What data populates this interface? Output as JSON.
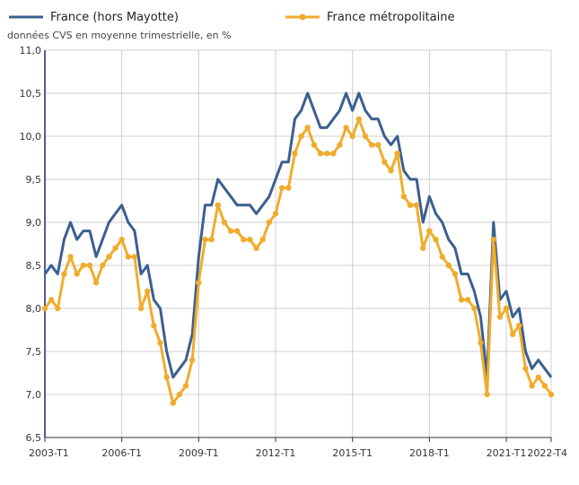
{
  "chart_data": {
    "type": "line",
    "subtitle": "données CVS en moyenne trimestrielle, en %",
    "legend_position": "top",
    "grid": true,
    "ylim": [
      6.5,
      11.0
    ],
    "y_ticks": [
      "6,5",
      "7,0",
      "7,5",
      "8,0",
      "8,5",
      "9,0",
      "9,5",
      "10,0",
      "10,5",
      "11,0"
    ],
    "x_ticks": [
      "2003-T1",
      "2006-T1",
      "2009-T1",
      "2012-T1",
      "2015-T1",
      "2018-T1",
      "2021-T1",
      "2022-T4"
    ],
    "x_tick_positions": [
      0,
      12,
      24,
      36,
      48,
      60,
      72,
      79
    ],
    "x_first": "2003-T1",
    "x_last": "2022-T4",
    "series": [
      {
        "name": "France (hors Mayotte)",
        "color": "#3b5f8f",
        "markers": false,
        "values": [
          8.4,
          8.5,
          8.4,
          8.8,
          9.0,
          8.8,
          8.9,
          8.9,
          8.6,
          8.8,
          9.0,
          9.1,
          9.2,
          9.0,
          8.9,
          8.4,
          8.5,
          8.1,
          8.0,
          7.5,
          7.2,
          7.3,
          7.4,
          7.7,
          8.6,
          9.2,
          9.2,
          9.5,
          9.4,
          9.3,
          9.2,
          9.2,
          9.2,
          9.1,
          9.2,
          9.3,
          9.5,
          9.7,
          9.7,
          10.2,
          10.3,
          10.5,
          10.3,
          10.1,
          10.1,
          10.2,
          10.3,
          10.5,
          10.3,
          10.5,
          10.3,
          10.2,
          10.2,
          10.0,
          9.9,
          10.0,
          9.6,
          9.5,
          9.5,
          9.0,
          9.3,
          9.1,
          9.0,
          8.8,
          8.7,
          8.4,
          8.4,
          8.2,
          7.9,
          7.2,
          9.0,
          8.1,
          8.2,
          7.9,
          8.0,
          7.5,
          7.3,
          7.4,
          7.3,
          7.2
        ]
      },
      {
        "name": "France métropolitaine",
        "color": "#f0ac2c",
        "markers": true,
        "values": [
          8.0,
          8.1,
          8.0,
          8.4,
          8.6,
          8.4,
          8.5,
          8.5,
          8.3,
          8.5,
          8.6,
          8.7,
          8.8,
          8.6,
          8.6,
          8.0,
          8.2,
          7.8,
          7.6,
          7.2,
          6.9,
          7.0,
          7.1,
          7.4,
          8.3,
          8.8,
          8.8,
          9.2,
          9.0,
          8.9,
          8.9,
          8.8,
          8.8,
          8.7,
          8.8,
          9.0,
          9.1,
          9.4,
          9.4,
          9.8,
          10.0,
          10.1,
          9.9,
          9.8,
          9.8,
          9.8,
          9.9,
          10.1,
          10.0,
          10.2,
          10.0,
          9.9,
          9.9,
          9.7,
          9.6,
          9.8,
          9.3,
          9.2,
          9.2,
          8.7,
          8.9,
          8.8,
          8.6,
          8.5,
          8.4,
          8.1,
          8.1,
          8.0,
          7.6,
          7.0,
          8.8,
          7.9,
          8.0,
          7.7,
          7.8,
          7.3,
          7.1,
          7.2,
          7.1,
          7.0
        ]
      }
    ]
  }
}
